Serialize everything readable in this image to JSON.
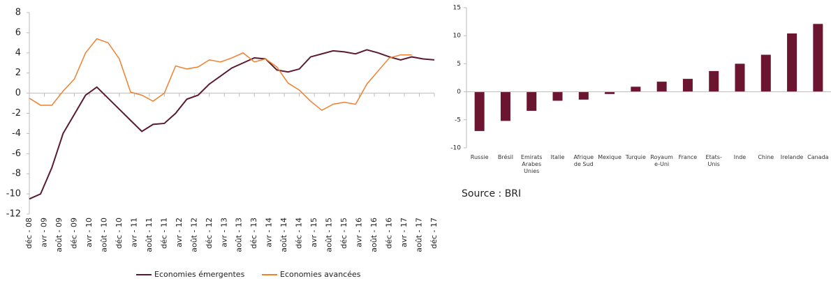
{
  "chart_data": [
    {
      "type": "line",
      "x": [
        0,
        3,
        6,
        9,
        12,
        15,
        18,
        21,
        24,
        27,
        30,
        33,
        36,
        39,
        42,
        45,
        48,
        51,
        54,
        57,
        60,
        63,
        66,
        69,
        72,
        75,
        78,
        81,
        84,
        87,
        90,
        93,
        96,
        99,
        102,
        105,
        108
      ],
      "series": [
        {
          "name": "Economies émergentes",
          "color": "#5c1a2e",
          "values": [
            -10.5,
            -10,
            -7.4,
            -4,
            -2.1,
            -0.2,
            0.6,
            -0.5,
            -1.6,
            -2.7,
            -3.8,
            -3.1,
            -3.0,
            -2.0,
            -0.6,
            -0.2,
            0.9,
            1.7,
            2.5,
            3.0,
            3.5,
            3.4,
            2.3,
            2.1,
            2.4,
            3.6,
            3.9,
            4.2,
            4.1,
            3.9,
            4.3,
            4.0,
            3.6,
            3.3,
            3.6,
            3.4,
            3.3
          ]
        },
        {
          "name": "Economies avancées",
          "color": "#f07f2e",
          "values": [
            -0.5,
            -1.2,
            -1.2,
            0.2,
            1.4,
            4.0,
            5.4,
            5.0,
            3.4,
            0.1,
            -0.2,
            -0.8,
            0.0,
            2.7,
            2.4,
            2.6,
            3.3,
            3.1,
            3.5,
            4.0,
            3.1,
            3.4,
            2.6,
            1.0,
            0.3,
            -0.8,
            -1.7,
            -1.1,
            -0.9,
            -1.1,
            0.9,
            2.2,
            3.5,
            3.8,
            3.8,
            null,
            null
          ]
        }
      ],
      "xlim": [
        0,
        108
      ],
      "xticks": [
        {
          "value": 0,
          "label": "déc - 08"
        },
        {
          "value": 4,
          "label": "avr - 09"
        },
        {
          "value": 8,
          "label": "août - 09"
        },
        {
          "value": 12,
          "label": "déc - 09"
        },
        {
          "value": 16,
          "label": "avr - 10"
        },
        {
          "value": 20,
          "label": "août - 10"
        },
        {
          "value": 24,
          "label": "déc - 10"
        },
        {
          "value": 28,
          "label": "avr - 11"
        },
        {
          "value": 32,
          "label": "août - 11"
        },
        {
          "value": 36,
          "label": "déc - 11"
        },
        {
          "value": 40,
          "label": "avr - 12"
        },
        {
          "value": 44,
          "label": "août - 12"
        },
        {
          "value": 48,
          "label": "déc - 12"
        },
        {
          "value": 52,
          "label": "avr - 13"
        },
        {
          "value": 56,
          "label": "août - 13"
        },
        {
          "value": 60,
          "label": "déc - 13"
        },
        {
          "value": 64,
          "label": "avr - 14"
        },
        {
          "value": 68,
          "label": "août - 14"
        },
        {
          "value": 72,
          "label": "déc - 14"
        },
        {
          "value": 76,
          "label": "avr - 15"
        },
        {
          "value": 80,
          "label": "août - 15"
        },
        {
          "value": 84,
          "label": "déc - 15"
        },
        {
          "value": 88,
          "label": "avr - 16"
        },
        {
          "value": 92,
          "label": "août - 16"
        },
        {
          "value": 96,
          "label": "déc - 16"
        },
        {
          "value": 100,
          "label": "avr - 17"
        },
        {
          "value": 104,
          "label": "août - 17"
        },
        {
          "value": 108,
          "label": "déc - 17"
        }
      ],
      "ylim": [
        -12,
        8
      ],
      "yticks": [
        -12,
        -10,
        -8,
        -6,
        -4,
        -2,
        0,
        2,
        4,
        6,
        8
      ],
      "grid": false,
      "legend": "bottom"
    },
    {
      "type": "bar",
      "categories": [
        "Russie",
        "Brésil",
        "Emirats Arabes Unies",
        "Italie",
        "Afrique de Sud",
        "Mexique",
        "Turquie",
        "Royaume-Uni",
        "France",
        "Etats-Unis",
        "Inde",
        "Chine",
        "Irelande",
        "Canada"
      ],
      "values": [
        -7.0,
        -5.2,
        -3.4,
        -1.6,
        -1.4,
        -0.4,
        0.9,
        1.8,
        2.3,
        3.7,
        5.0,
        6.6,
        10.4,
        12.1
      ],
      "color": "#6b1530",
      "ylim": [
        -10,
        15
      ],
      "yticks": [
        -10,
        -5,
        0,
        5,
        10,
        15
      ],
      "grid": false,
      "annotation": "Source : BRI"
    }
  ]
}
